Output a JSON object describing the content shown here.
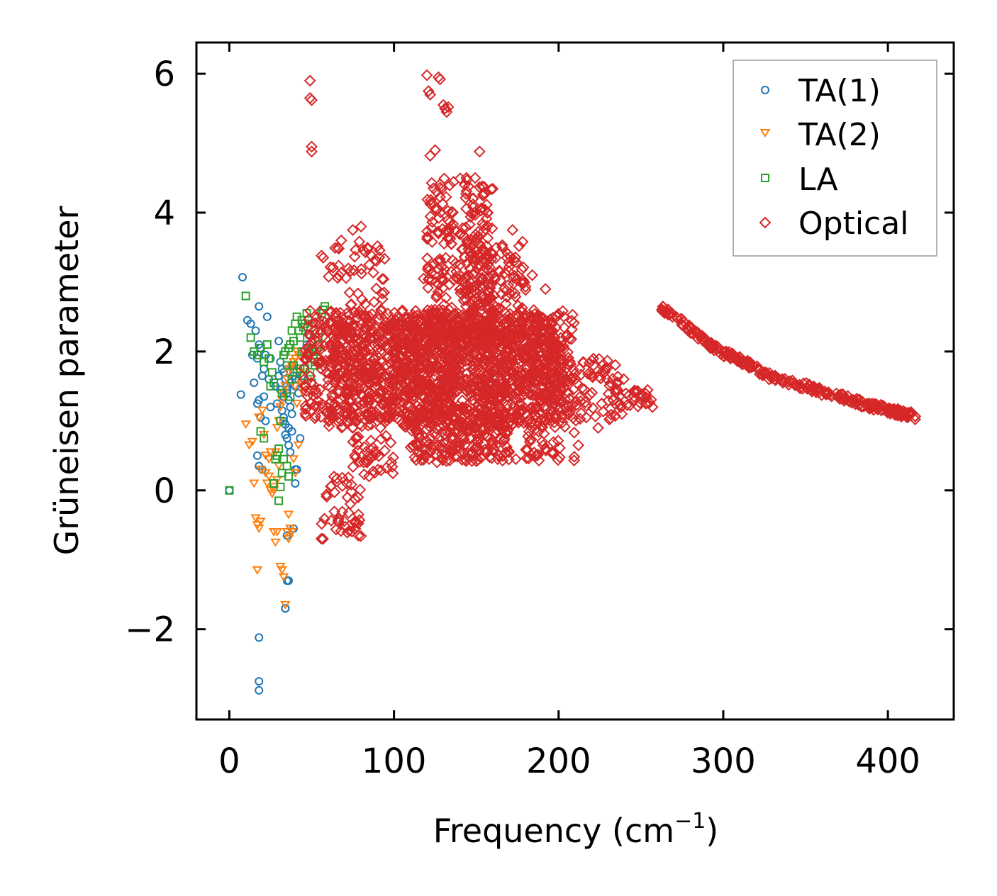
{
  "chart_data": {
    "type": "scatter",
    "title": "",
    "xlabel": "Frequency (cm",
    "xlabel_sup": "−1",
    "xlabel_end": ")",
    "ylabel": "Grüneisen parameter",
    "xlim": [
      -20,
      440
    ],
    "ylim": [
      -3.3,
      6.45
    ],
    "xticks": [
      0,
      100,
      200,
      300,
      400
    ],
    "xtick_labels": [
      "0",
      "100",
      "200",
      "300",
      "400"
    ],
    "yticks": [
      -2,
      0,
      2,
      4,
      6
    ],
    "ytick_labels": [
      "−2",
      "0",
      "2",
      "4",
      "6"
    ],
    "legend_position": "top-right",
    "series": [
      {
        "name": "TA(1)",
        "marker": "circle",
        "color": "#1f77b4",
        "x": [
          0,
          8,
          11,
          7,
          13,
          16,
          18,
          18,
          19,
          21,
          22,
          17,
          14,
          23,
          25,
          24,
          20,
          17,
          18,
          21,
          19,
          15,
          17,
          18,
          20,
          22,
          25,
          28,
          30,
          31,
          32,
          33,
          34,
          35,
          35,
          36,
          37,
          38,
          33,
          34,
          36,
          38,
          30,
          31,
          29,
          32,
          33,
          34,
          35,
          36,
          37,
          38,
          39,
          40,
          40,
          33,
          35,
          37,
          39,
          41,
          42,
          40,
          44,
          46,
          47,
          48,
          45,
          43,
          35,
          39,
          36,
          34,
          34,
          35,
          18,
          18,
          18,
          40
        ],
        "y": [
          0.0,
          3.07,
          2.45,
          1.38,
          2.4,
          2.3,
          2.65,
          2.1,
          2.05,
          1.75,
          1.95,
          1.9,
          1.95,
          2.5,
          1.9,
          1.6,
          1.65,
          1.25,
          1.3,
          1.35,
          1.05,
          1.55,
          0.5,
          0.35,
          0.3,
          1.0,
          1.2,
          1.5,
          2.15,
          1.85,
          1.75,
          1.7,
          1.6,
          1.5,
          1.4,
          1.3,
          1.2,
          1.1,
          1.0,
          0.95,
          0.9,
          0.85,
          1.65,
          1.45,
          1.25,
          1.15,
          1.05,
          0.8,
          0.75,
          0.65,
          0.55,
          1.8,
          1.7,
          1.6,
          1.5,
          1.35,
          1.45,
          1.55,
          1.65,
          0.3,
          1.4,
          0.1,
          1.65,
          1.9,
          2.1,
          2.25,
          2.0,
          0.75,
          -0.65,
          -0.55,
          -1.3,
          -1.7,
          -1.7,
          -1.3,
          -2.12,
          -2.75,
          -2.88,
          0.3
        ],
        "size": [
          3,
          3,
          3,
          3,
          3,
          3,
          3,
          3,
          3,
          3,
          3,
          3,
          3,
          3,
          3,
          3,
          3,
          3,
          3,
          3,
          3,
          3,
          3,
          3,
          3,
          3,
          3,
          3,
          3,
          3,
          3,
          3,
          3,
          3,
          3,
          3,
          3,
          3,
          3,
          3,
          3,
          3,
          3,
          3,
          3,
          3,
          3,
          3,
          3,
          3,
          3,
          3,
          3,
          3,
          3,
          3,
          3,
          3,
          3,
          3,
          3,
          3,
          3,
          3,
          3,
          3,
          3,
          3,
          3,
          3,
          3,
          3,
          3,
          3,
          3,
          3,
          3,
          3
        ]
      },
      {
        "name": "TA(2)",
        "marker": "triangle-down",
        "color": "#ff7f0e",
        "x": [
          10,
          12,
          15,
          17,
          18,
          20,
          21,
          22,
          24,
          25,
          26,
          27,
          28,
          29,
          30,
          31,
          32,
          33,
          34,
          35,
          36,
          37,
          38,
          39,
          40,
          41,
          42,
          43,
          44,
          45,
          14,
          16,
          17,
          19,
          22,
          23,
          25,
          27,
          28,
          29,
          31,
          32,
          33,
          34,
          36,
          37,
          38,
          39,
          40,
          42,
          18,
          19,
          24,
          27,
          29,
          30,
          35,
          36,
          40,
          41
        ],
        "y": [
          0.95,
          0.65,
          0.1,
          -0.5,
          -0.55,
          1.15,
          0.8,
          0.5,
          0.45,
          0.0,
          -0.05,
          0.0,
          0.55,
          0.9,
          1.0,
          1.2,
          1.3,
          1.4,
          1.5,
          1.6,
          1.7,
          1.75,
          1.8,
          1.85,
          1.9,
          2.0,
          1.95,
          1.7,
          1.55,
          1.4,
          0.7,
          -0.4,
          -1.15,
          -0.45,
          0.25,
          0.1,
          0.55,
          -0.6,
          -0.75,
          -0.6,
          -1.1,
          -1.15,
          -1.25,
          -1.65,
          -0.35,
          -0.55,
          -0.6,
          0.45,
          0.25,
          0.65,
          1.05,
          0.3,
          0.2,
          0.05,
          0.15,
          0.35,
          -0.6,
          -0.7,
          1.5,
          1.25
        ]
      },
      {
        "name": "LA",
        "marker": "square",
        "color": "#2ca02c",
        "x": [
          0,
          10,
          13,
          15,
          17,
          19,
          21,
          23,
          24,
          25,
          26,
          27,
          28,
          29,
          30,
          31,
          32,
          33,
          34,
          35,
          36,
          37,
          38,
          39,
          40,
          41,
          42,
          43,
          44,
          45,
          46,
          47,
          48,
          49,
          50,
          51,
          52,
          53,
          54,
          55,
          56,
          57,
          58,
          19,
          21,
          27,
          30,
          31,
          32,
          33,
          35,
          36,
          37,
          38,
          39,
          41,
          43,
          44,
          45,
          46,
          47,
          48,
          49,
          50,
          52,
          54,
          56
        ],
        "y": [
          0.0,
          2.8,
          2.2,
          2.0,
          1.95,
          2.05,
          1.85,
          2.1,
          1.9,
          1.5,
          1.7,
          1.55,
          0.45,
          0.5,
          0.6,
          1.0,
          1.4,
          1.95,
          2.0,
          1.8,
          2.05,
          2.1,
          2.3,
          2.15,
          2.4,
          2.5,
          2.3,
          2.2,
          2.45,
          2.35,
          2.4,
          2.55,
          2.45,
          2.25,
          2.05,
          1.95,
          1.85,
          2.0,
          2.2,
          2.4,
          2.55,
          2.6,
          2.65,
          0.85,
          0.75,
          0.1,
          -0.15,
          0.05,
          0.25,
          0.45,
          0.35,
          0.2,
          1.35,
          1.6,
          1.8,
          1.7,
          1.75,
          2.0,
          1.65,
          1.75,
          1.9,
          2.05,
          1.7,
          1.55,
          1.8,
          2.1,
          2.3
        ]
      },
      {
        "name": "Optical",
        "marker": "diamond",
        "color": "#d62728",
        "clusters": [
          {
            "x": [
              45,
              140
            ],
            "y": [
              1.0,
              2.6
            ],
            "n": 500
          },
          {
            "x": [
              60,
              200
            ],
            "y": [
              0.9,
              2.4
            ],
            "n": 650
          },
          {
            "x": [
              100,
              200
            ],
            "y": [
              1.3,
              2.5
            ],
            "n": 450
          },
          {
            "x": [
              110,
              170
            ],
            "y": [
              0.4,
              1.2
            ],
            "n": 260
          },
          {
            "x": [
              120,
              160
            ],
            "y": [
              2.0,
              4.5
            ],
            "n": 260
          },
          {
            "x": [
              140,
              180
            ],
            "y": [
              2.2,
              3.6
            ],
            "n": 160
          },
          {
            "x": [
              155,
              210
            ],
            "y": [
              1.0,
              2.6
            ],
            "n": 220
          },
          {
            "x": [
              200,
              240
            ],
            "y": [
              1.0,
              1.9
            ],
            "n": 90
          },
          {
            "x": [
              60,
              95
            ],
            "y": [
              2.2,
              3.6
            ],
            "n": 70
          },
          {
            "x": [
              55,
              80
            ],
            "y": [
              -0.7,
              0.2
            ],
            "n": 45
          },
          {
            "x": [
              75,
              100
            ],
            "y": [
              0.2,
              0.8
            ],
            "n": 40
          },
          {
            "x": [
              180,
              210
            ],
            "y": [
              0.4,
              1.0
            ],
            "n": 40
          },
          {
            "x": [
              240,
              257
            ],
            "y": [
              1.2,
              1.45
            ],
            "n": 20
          }
        ],
        "branch": {
          "x": [
            262,
            270,
            280,
            290,
            300,
            310,
            320,
            330,
            340,
            350,
            360,
            370,
            380,
            390,
            400,
            410,
            418
          ],
          "y": [
            2.62,
            2.52,
            2.32,
            2.12,
            1.98,
            1.88,
            1.75,
            1.62,
            1.55,
            1.5,
            1.42,
            1.36,
            1.28,
            1.21,
            1.16,
            1.1,
            1.06
          ],
          "n": 280
        },
        "x": [
          49,
          49,
          50,
          50,
          50,
          56,
          57,
          120,
          121,
          127,
          128,
          130,
          131,
          132,
          133,
          152,
          122,
          124,
          143,
          144,
          148,
          149,
          85,
          80,
          75,
          68,
          94,
          118,
          135,
          160,
          172,
          184,
          192,
          200,
          215,
          228,
          236,
          250,
          253,
          257,
          122,
          125,
          127,
          128,
          150,
          158,
          168,
          174,
          186,
          192,
          212,
          224
        ],
        "y": [
          5.9,
          5.65,
          5.62,
          4.95,
          4.88,
          3.38,
          3.35,
          5.98,
          5.75,
          5.95,
          5.92,
          5.55,
          5.5,
          5.45,
          5.52,
          4.88,
          4.82,
          4.35,
          4.4,
          4.5,
          4.2,
          4.0,
          3.25,
          3.8,
          3.75,
          3.6,
          2.85,
          3.05,
          3.55,
          3.4,
          3.75,
          3.1,
          2.9,
          2.05,
          1.85,
          1.75,
          1.55,
          1.35,
          1.25,
          1.2,
          5.7,
          4.9,
          3.7,
          3.3,
          0.42,
          0.48,
          0.55,
          0.45,
          0.5,
          0.6,
          0.65,
          0.9
        ]
      }
    ]
  }
}
